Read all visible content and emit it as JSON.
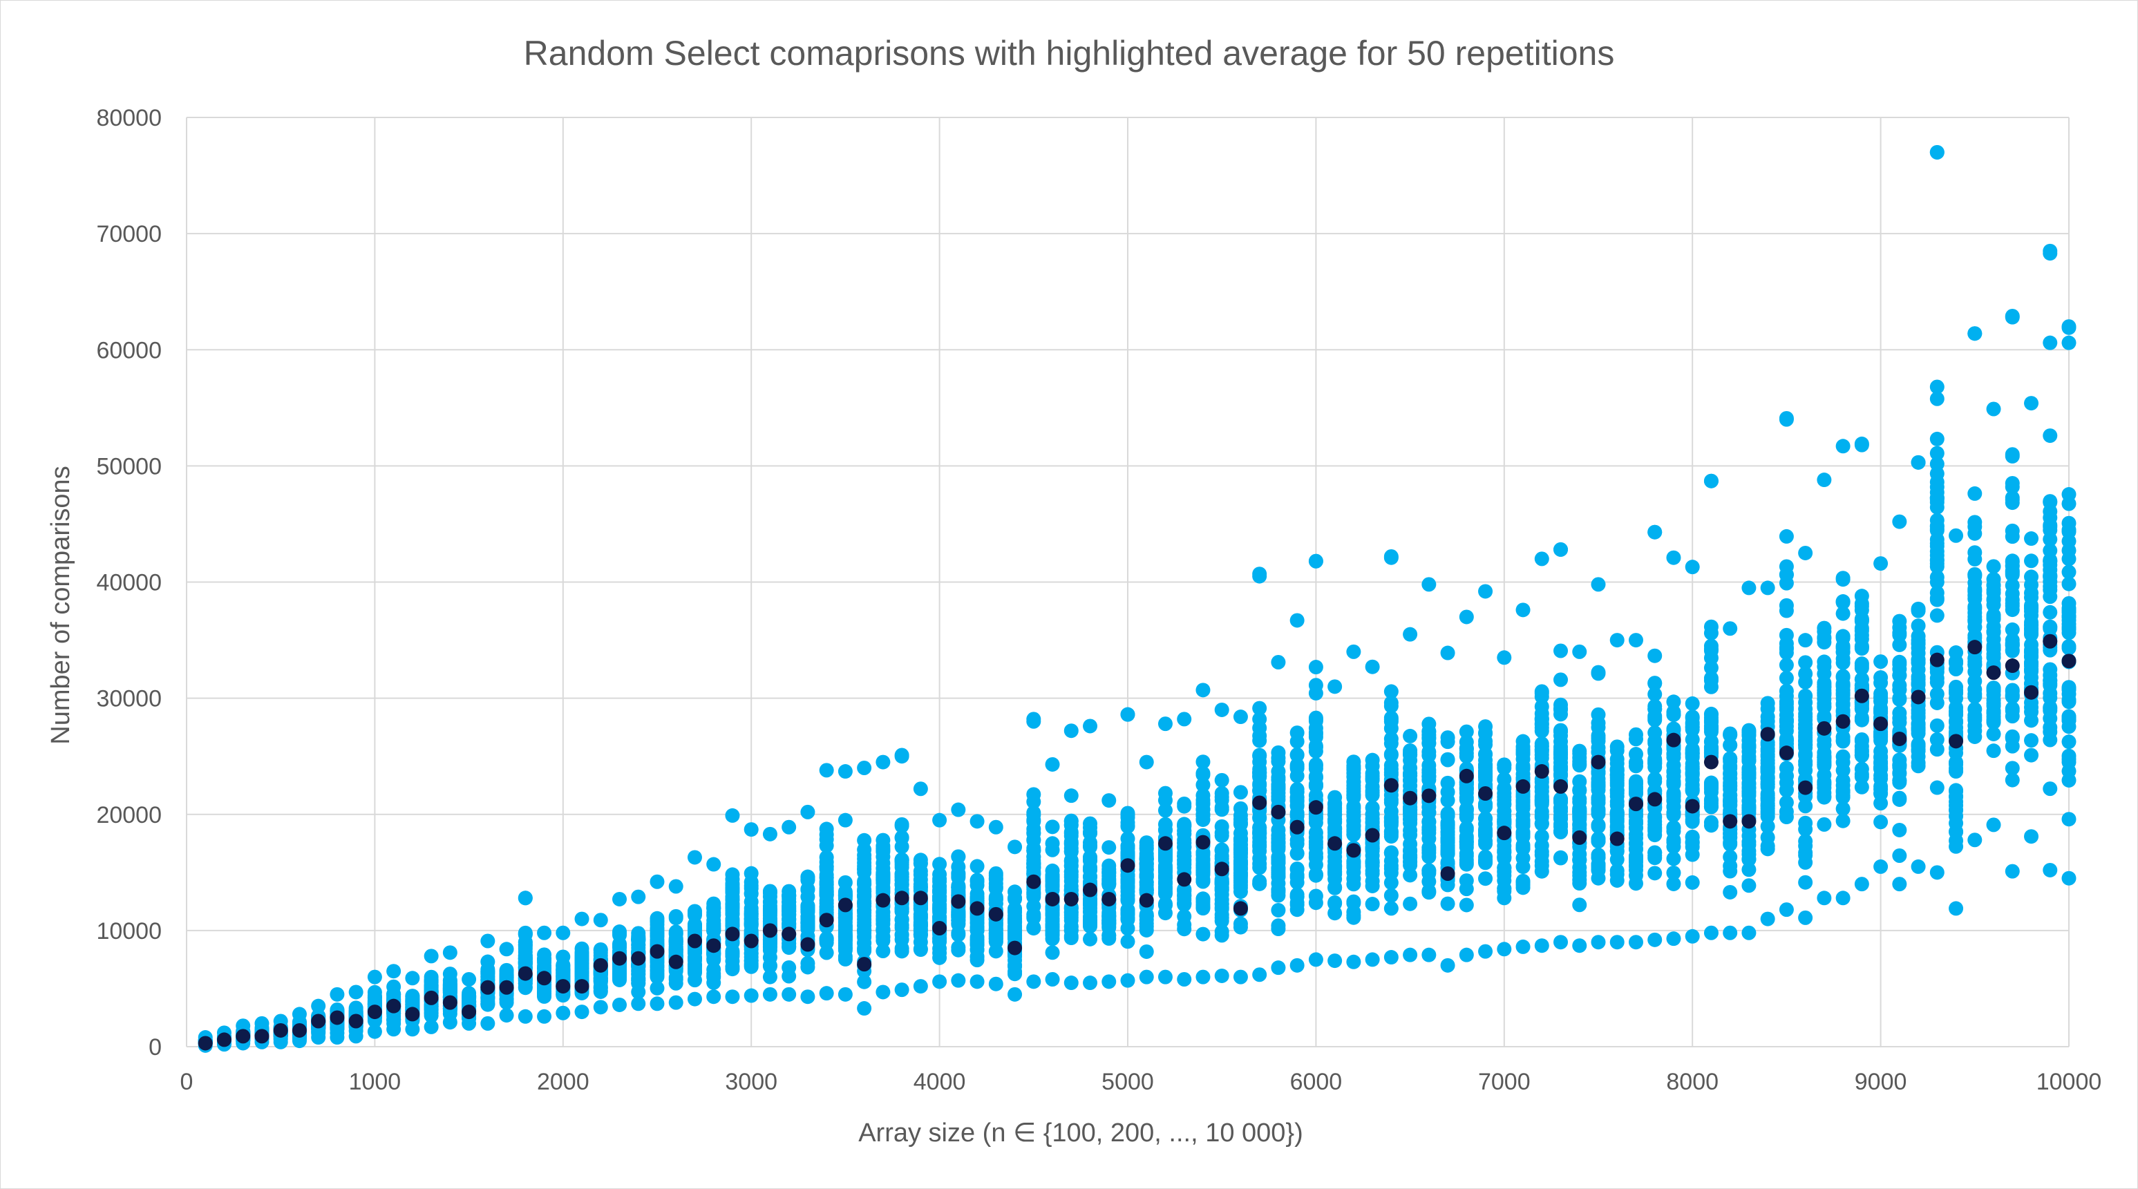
{
  "chart_data": {
    "type": "scatter",
    "title": "Random Select comaprisons with highlighted average for 50 repetitions",
    "xlabel": "Array size (n ∈ {100, 200, ..., 10 000})",
    "ylabel": "Number of comparisons",
    "xlim": [
      0,
      10000
    ],
    "ylim": [
      0,
      80000
    ],
    "xticks": [
      0,
      1000,
      2000,
      3000,
      4000,
      5000,
      6000,
      7000,
      8000,
      9000,
      10000
    ],
    "yticks": [
      0,
      10000,
      20000,
      30000,
      40000,
      50000,
      60000,
      70000,
      80000
    ],
    "grid": true,
    "legend": "none",
    "colors": {
      "repetitions": "#00b0f0",
      "average": "#0d1b4a"
    },
    "series": [
      {
        "role": "repetitions-range",
        "points_per_x": 50,
        "x": [
          100,
          200,
          300,
          400,
          500,
          600,
          700,
          800,
          900,
          1000,
          1100,
          1200,
          1300,
          1400,
          1500,
          1600,
          1700,
          1800,
          1900,
          2000,
          2100,
          2200,
          2300,
          2400,
          2500,
          2600,
          2700,
          2800,
          2900,
          3000,
          3100,
          3200,
          3300,
          3400,
          3500,
          3600,
          3700,
          3800,
          3900,
          4000,
          4100,
          4200,
          4300,
          4400,
          4500,
          4600,
          4700,
          4800,
          4900,
          5000,
          5100,
          5200,
          5300,
          5400,
          5500,
          5600,
          5700,
          5800,
          5900,
          6000,
          6100,
          6200,
          6300,
          6400,
          6500,
          6600,
          6700,
          6800,
          6900,
          7000,
          7100,
          7200,
          7300,
          7400,
          7500,
          7600,
          7700,
          7800,
          7900,
          8000,
          8100,
          8200,
          8300,
          8400,
          8500,
          8600,
          8700,
          8800,
          8900,
          9000,
          9100,
          9200,
          9300,
          9400,
          9500,
          9600,
          9700,
          9800,
          9900,
          10000
        ],
        "min": [
          100,
          200,
          300,
          400,
          400,
          500,
          800,
          800,
          900,
          1300,
          1500,
          1500,
          1700,
          2100,
          2000,
          2000,
          2700,
          2600,
          2600,
          2900,
          3000,
          3400,
          3600,
          3700,
          3700,
          3800,
          4100,
          4300,
          4300,
          4400,
          4500,
          4500,
          4300,
          4600,
          4500,
          3300,
          4700,
          4900,
          5200,
          5600,
          5700,
          5600,
          5400,
          4500,
          5600,
          5800,
          5500,
          5500,
          5600,
          5700,
          6000,
          6000,
          5800,
          6000,
          6100,
          6000,
          6200,
          6800,
          7000,
          7500,
          7400,
          7300,
          7500,
          7700,
          7900,
          7900,
          7000,
          7900,
          8200,
          8400,
          8600,
          8700,
          9000,
          8700,
          9000,
          9000,
          9000,
          9200,
          9300,
          9500,
          9800,
          9800,
          9800,
          11000,
          11800,
          11100,
          12800,
          12800,
          14000,
          15500,
          14000,
          15500,
          15000,
          11900,
          17800,
          19100,
          15100,
          18100,
          15200,
          14500
        ],
        "max": [
          800,
          1200,
          1800,
          2000,
          2200,
          2800,
          3500,
          4500,
          4700,
          6000,
          6500,
          5900,
          7800,
          8100,
          5800,
          9100,
          8400,
          12800,
          9800,
          9800,
          11000,
          10900,
          12700,
          12900,
          14200,
          13800,
          16300,
          15700,
          19900,
          18700,
          18300,
          18900,
          20200,
          23800,
          19500,
          24000,
          24500,
          25000,
          22200,
          19500,
          20400,
          19400,
          18900,
          17200,
          28000,
          24300,
          27200,
          27600,
          21200,
          28600,
          24500,
          27800,
          28200,
          30700,
          29000,
          28400,
          40700,
          33100,
          36700,
          41800,
          31000,
          34000,
          32700,
          42100,
          35500,
          39800,
          33900,
          37000,
          39200,
          33500,
          37600,
          42000,
          42800,
          34000,
          39800,
          35000,
          35000,
          44300,
          42100,
          41300,
          48700,
          36000,
          39500,
          39500,
          54100,
          42500,
          48800,
          51700,
          51900,
          41600,
          45200,
          50300,
          77000,
          44000,
          61400,
          54900,
          62900,
          55400,
          68500,
          62000
        ],
        "outliers": [
          [
            1800,
            12800
          ],
          [
            3500,
            23700
          ],
          [
            3800,
            25100
          ],
          [
            4500,
            28200
          ],
          [
            5000,
            28600
          ],
          [
            5700,
            40500
          ],
          [
            6000,
            41800
          ],
          [
            6400,
            42200
          ],
          [
            7300,
            42800
          ],
          [
            7800,
            44300
          ],
          [
            8100,
            48700
          ],
          [
            8500,
            54000
          ],
          [
            8900,
            51800
          ],
          [
            9200,
            50300
          ],
          [
            9300,
            77000
          ],
          [
            9500,
            61400
          ],
          [
            9700,
            62800
          ],
          [
            9900,
            68300
          ],
          [
            10000,
            61900
          ],
          [
            9900,
            60600
          ],
          [
            10000,
            60600
          ]
        ]
      },
      {
        "role": "average",
        "x": [
          100,
          200,
          300,
          400,
          500,
          600,
          700,
          800,
          900,
          1000,
          1100,
          1200,
          1300,
          1400,
          1500,
          1600,
          1700,
          1800,
          1900,
          2000,
          2100,
          2200,
          2300,
          2400,
          2500,
          2600,
          2700,
          2800,
          2900,
          3000,
          3100,
          3200,
          3300,
          3400,
          3500,
          3600,
          3700,
          3800,
          3900,
          4000,
          4100,
          4200,
          4300,
          4400,
          4500,
          4600,
          4700,
          4800,
          4900,
          5000,
          5100,
          5200,
          5300,
          5400,
          5500,
          5600,
          5700,
          5800,
          5900,
          6000,
          6100,
          6200,
          6300,
          6400,
          6500,
          6600,
          6700,
          6800,
          6900,
          7000,
          7100,
          7200,
          7300,
          7400,
          7500,
          7600,
          7700,
          7800,
          7900,
          8000,
          8100,
          8200,
          8300,
          8400,
          8500,
          8600,
          8700,
          8800,
          8900,
          9000,
          9100,
          9200,
          9300,
          9400,
          9500,
          9600,
          9700,
          9800,
          9900,
          10000
        ],
        "y": [
          300,
          600,
          900,
          900,
          1400,
          1400,
          2200,
          2500,
          2200,
          3000,
          3500,
          2800,
          4200,
          3800,
          3000,
          5100,
          5100,
          6300,
          5900,
          5200,
          5200,
          7000,
          7600,
          7600,
          8200,
          7300,
          9100,
          8700,
          9700,
          9100,
          10000,
          9700,
          8800,
          10900,
          12200,
          7100,
          12600,
          12800,
          12800,
          10200,
          12500,
          11900,
          11400,
          8500,
          14200,
          12700,
          12700,
          13500,
          12700,
          15600,
          12600,
          17500,
          14400,
          17600,
          15300,
          11900,
          21000,
          20200,
          18900,
          20600,
          17500,
          16900,
          18200,
          22500,
          21400,
          21600,
          14900,
          23300,
          21800,
          18400,
          22400,
          23700,
          22400,
          18000,
          24500,
          17900,
          20900,
          21300,
          26400,
          20700,
          24500,
          19400,
          19400,
          26900,
          25300,
          22300,
          27400,
          28000,
          30200,
          27800,
          26500,
          30100,
          33300,
          26300,
          34400,
          32200,
          32800,
          30500,
          34900,
          33200
        ]
      }
    ]
  }
}
